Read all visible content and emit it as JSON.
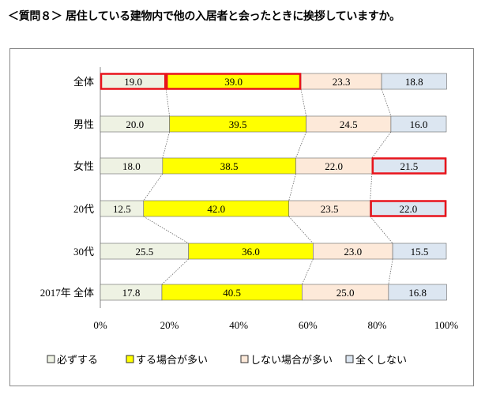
{
  "title": "＜質問８＞ 居住している建物内で他の入居者と会ったときに挨拶していますか。",
  "chart_data": {
    "type": "bar",
    "orientation": "horizontal",
    "stacked": "percent",
    "categories": [
      "全体",
      "男性",
      "女性",
      "20代",
      "30代",
      "2017年 全体"
    ],
    "series": [
      {
        "name": "必ずする",
        "color": "#eef2e3",
        "values": [
          19.0,
          20.0,
          18.0,
          12.5,
          25.5,
          17.8
        ]
      },
      {
        "name": "する場合が多い",
        "color": "#ffff00",
        "values": [
          39.0,
          39.5,
          38.5,
          42.0,
          36.0,
          40.5
        ]
      },
      {
        "name": "しない場合が多い",
        "color": "#fde9d9",
        "values": [
          23.3,
          24.5,
          22.0,
          23.5,
          23.0,
          25.0
        ]
      },
      {
        "name": "全くしない",
        "color": "#dce6f1",
        "values": [
          18.8,
          16.0,
          21.5,
          22.0,
          15.5,
          16.8
        ]
      }
    ],
    "highlighted": [
      {
        "category": "全体",
        "series": "必ずする"
      },
      {
        "category": "全体",
        "series": "する場合が多い"
      },
      {
        "category": "女性",
        "series": "全くしない"
      },
      {
        "category": "20代",
        "series": "全くしない"
      }
    ],
    "highlight_color": "#e8141c",
    "xlim": [
      0,
      100
    ],
    "xticks": [
      "0%",
      "20%",
      "40%",
      "60%",
      "80%",
      "100%"
    ],
    "legend_position": "bottom",
    "grid": false,
    "series_connector_lines": true
  }
}
